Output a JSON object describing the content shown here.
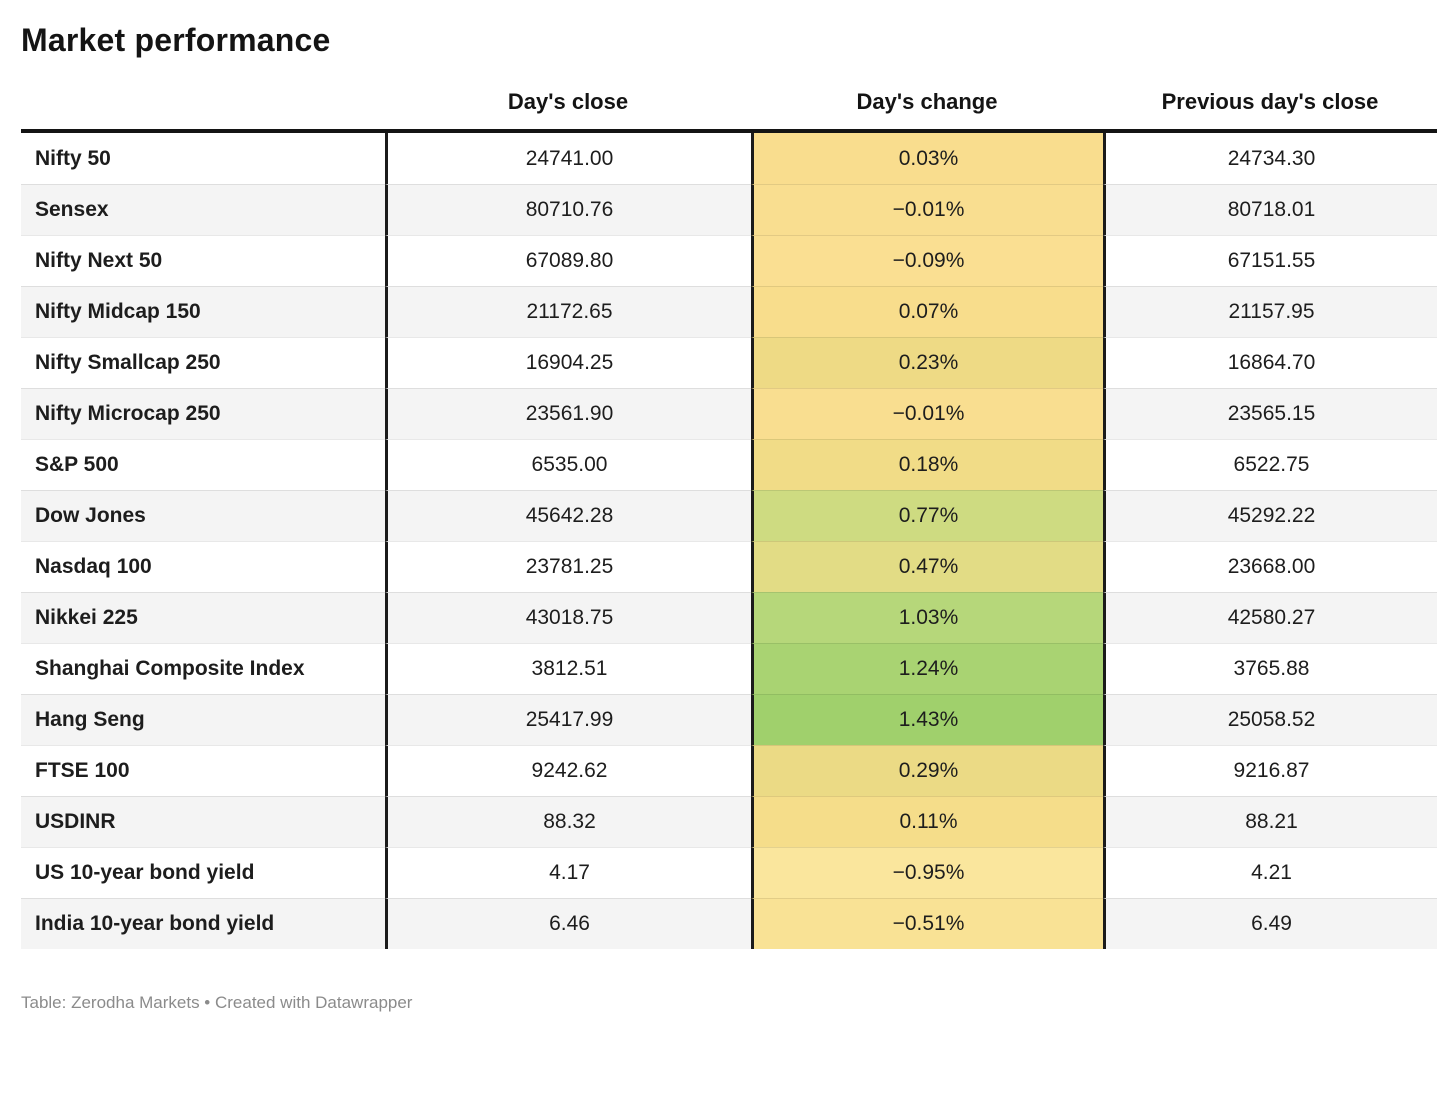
{
  "title": "Market performance",
  "header": {
    "col_label": "",
    "col_close": "Day's close",
    "col_change": "Day's change",
    "col_prev": "Previous day's close"
  },
  "footer": {
    "text": "Table: Zerodha Markets • Created with Datawrapper"
  },
  "colors": {
    "border_dark": "#1b1b1b",
    "stripe": "#f4f4f4",
    "footer_text": "#8b8b8b",
    "heatmap_yellow": "#f9dd8e",
    "heatmap_green": "#a0d06c"
  },
  "chart_data": {
    "type": "table",
    "title": "Market performance",
    "columns": [
      "",
      "Day's close",
      "Day's change",
      "Previous day's close"
    ],
    "heatmap_column": "Day's change",
    "source": "Table: Zerodha Markets • Created with Datawrapper",
    "rows": [
      {
        "label": "Nifty 50",
        "close": "24741.00",
        "change": "0.03%",
        "change_value": 0.03,
        "prev": "24734.30",
        "change_color": "#f9dd8e"
      },
      {
        "label": "Sensex",
        "close": "80710.76",
        "change": "−0.01%",
        "change_value": -0.01,
        "prev": "80718.01",
        "change_color": "#f9de90"
      },
      {
        "label": "Nifty Next 50",
        "close": "67089.80",
        "change": "−0.09%",
        "change_value": -0.09,
        "prev": "67151.55",
        "change_color": "#fadf92"
      },
      {
        "label": "Nifty Midcap 150",
        "close": "21172.65",
        "change": "0.07%",
        "change_value": 0.07,
        "prev": "21157.95",
        "change_color": "#f8dd8c"
      },
      {
        "label": "Nifty Smallcap 250",
        "close": "16904.25",
        "change": "0.23%",
        "change_value": 0.23,
        "prev": "16864.70",
        "change_color": "#eeda85"
      },
      {
        "label": "Nifty Microcap 250",
        "close": "23561.90",
        "change": "−0.01%",
        "change_value": -0.01,
        "prev": "23565.15",
        "change_color": "#f9de90"
      },
      {
        "label": "S&P 500",
        "close": "6535.00",
        "change": "0.18%",
        "change_value": 0.18,
        "prev": "6522.75",
        "change_color": "#f1dc87"
      },
      {
        "label": "Dow Jones",
        "close": "45642.28",
        "change": "0.77%",
        "change_value": 0.77,
        "prev": "45292.22",
        "change_color": "#cedb81"
      },
      {
        "label": "Nasdaq 100",
        "close": "23781.25",
        "change": "0.47%",
        "change_value": 0.47,
        "prev": "23668.00",
        "change_color": "#e2dc85"
      },
      {
        "label": "Nikkei 225",
        "close": "43018.75",
        "change": "1.03%",
        "change_value": 1.03,
        "prev": "42580.27",
        "change_color": "#b6d77a"
      },
      {
        "label": "Shanghai Composite Index",
        "close": "3812.51",
        "change": "1.24%",
        "change_value": 1.24,
        "prev": "3765.88",
        "change_color": "#a9d372"
      },
      {
        "label": "Hang Seng",
        "close": "25417.99",
        "change": "1.43%",
        "change_value": 1.43,
        "prev": "25058.52",
        "change_color": "#a0d06c"
      },
      {
        "label": "FTSE 100",
        "close": "9242.62",
        "change": "0.29%",
        "change_value": 0.29,
        "prev": "9216.87",
        "change_color": "#ebda85"
      },
      {
        "label": "USDINR",
        "close": "88.32",
        "change": "0.11%",
        "change_value": 0.11,
        "prev": "88.21",
        "change_color": "#f5dd8a"
      },
      {
        "label": "US 10-year bond yield",
        "close": "4.17",
        "change": "−0.95%",
        "change_value": -0.95,
        "prev": "4.21",
        "change_color": "#fae69d"
      },
      {
        "label": "India 10-year bond yield",
        "close": "6.46",
        "change": "−0.51%",
        "change_value": -0.51,
        "prev": "6.49",
        "change_color": "#f9e295"
      }
    ]
  }
}
